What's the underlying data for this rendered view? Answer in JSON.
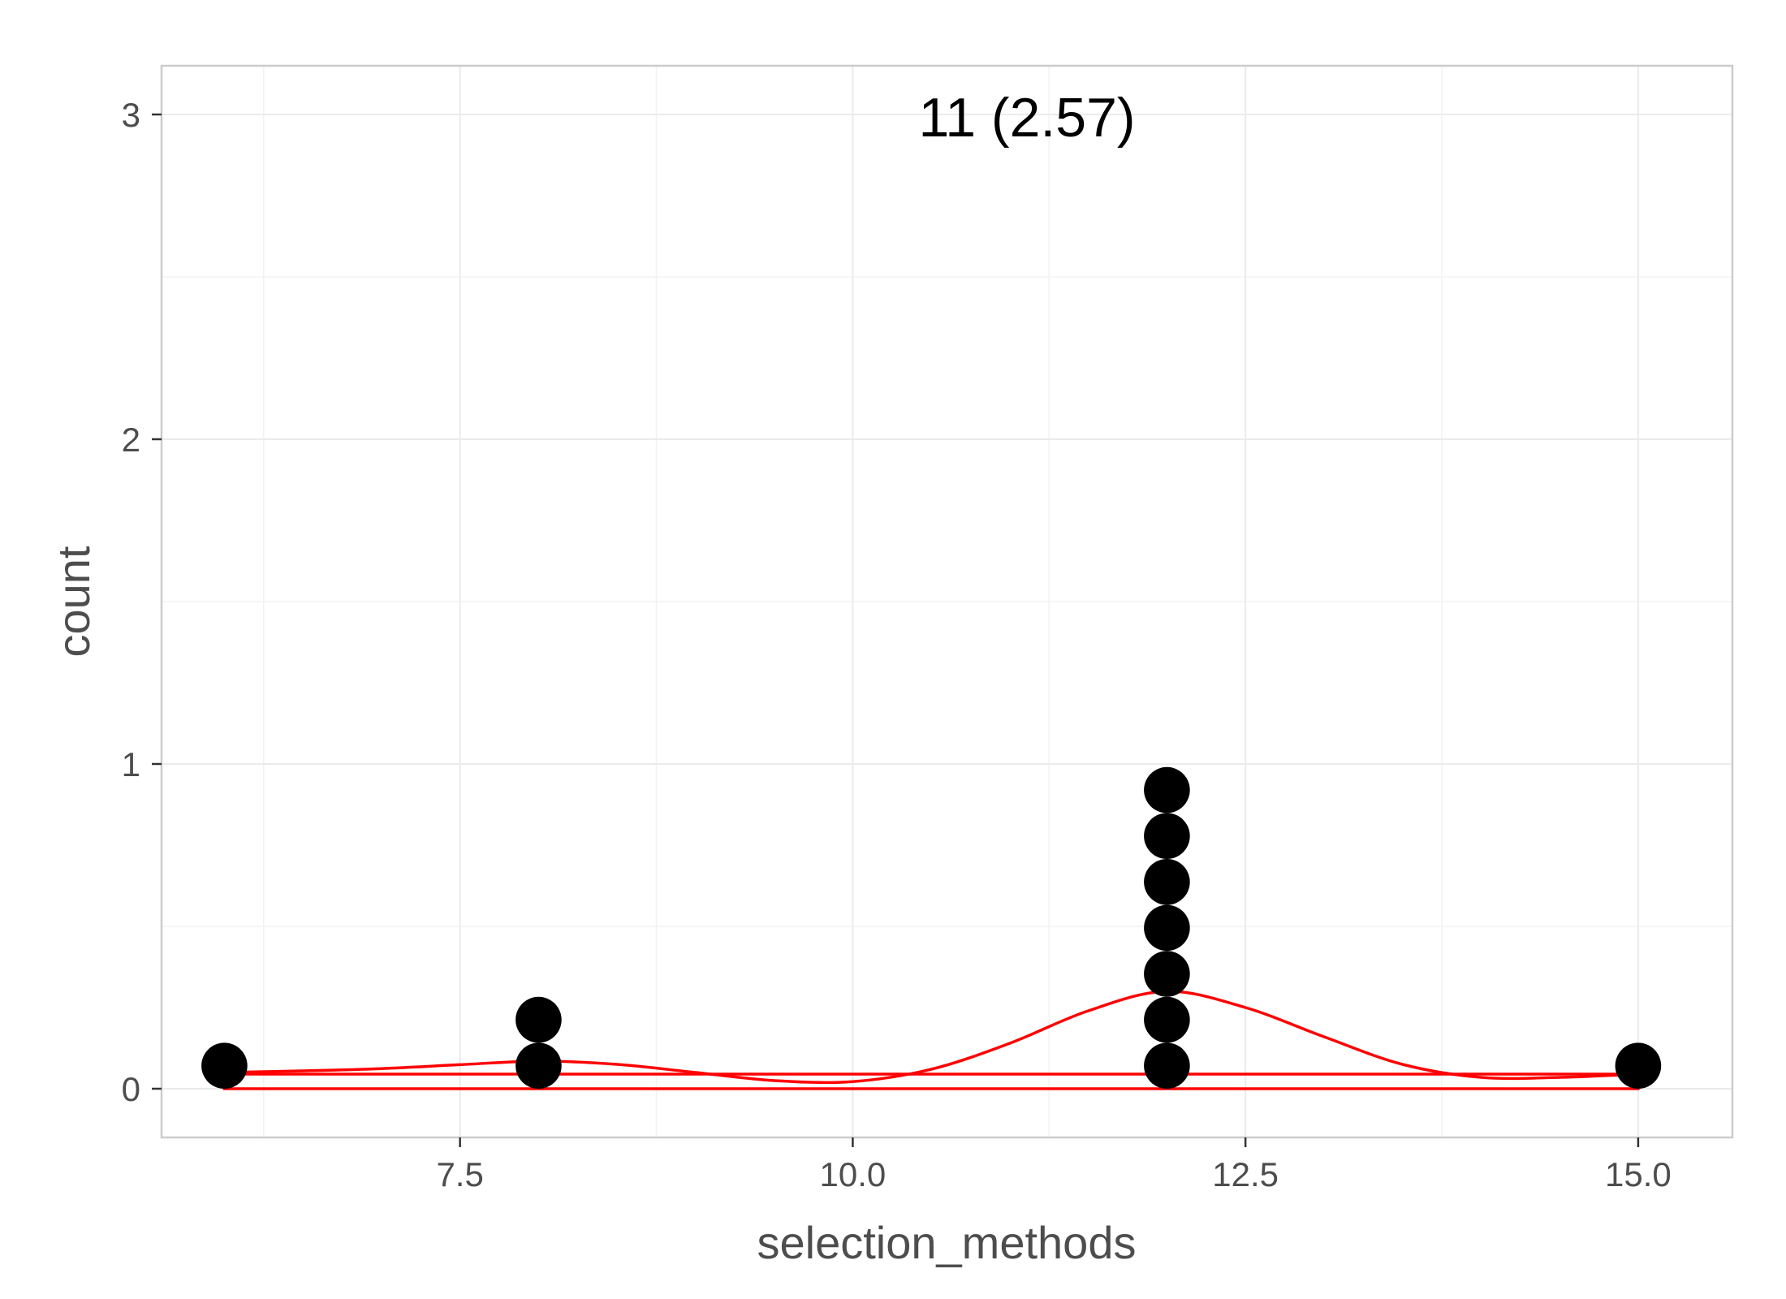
{
  "chart_data": {
    "type": "dotplot",
    "xlabel": "selection_methods",
    "ylabel": "count",
    "annotation": "11 (2.57)",
    "xlim": [
      5.6,
      15.6
    ],
    "ylim": [
      -0.15,
      3.15
    ],
    "x_ticks": [
      7.5,
      10.0,
      12.5,
      15.0
    ],
    "x_tick_labels": [
      "7.5",
      "10.0",
      "12.5",
      "15.0"
    ],
    "y_ticks": [
      0,
      1,
      2,
      3
    ],
    "y_tick_labels": [
      "0",
      "1",
      "2",
      "3"
    ],
    "grid": true,
    "dot_color": "#000000",
    "curve_color": "#ff0000",
    "stacks": [
      {
        "x": 6,
        "count": 1
      },
      {
        "x": 8,
        "count": 2
      },
      {
        "x": 12,
        "count": 7
      },
      {
        "x": 15,
        "count": 1
      }
    ],
    "dot_step": 0.1415,
    "density_curve": [
      [
        6.0,
        0.05
      ],
      [
        6.5,
        0.055
      ],
      [
        7.0,
        0.062
      ],
      [
        7.5,
        0.074
      ],
      [
        8.0,
        0.085
      ],
      [
        8.5,
        0.075
      ],
      [
        9.0,
        0.05
      ],
      [
        9.5,
        0.025
      ],
      [
        10.0,
        0.022
      ],
      [
        10.5,
        0.06
      ],
      [
        11.0,
        0.14
      ],
      [
        11.5,
        0.24
      ],
      [
        12.0,
        0.3
      ],
      [
        12.5,
        0.25
      ],
      [
        13.0,
        0.16
      ],
      [
        13.5,
        0.075
      ],
      [
        14.0,
        0.035
      ],
      [
        14.5,
        0.035
      ],
      [
        15.0,
        0.045
      ]
    ],
    "range_box": {
      "xmin": 6,
      "xmax": 15,
      "ymin": 0,
      "ymax": 0.045
    }
  }
}
